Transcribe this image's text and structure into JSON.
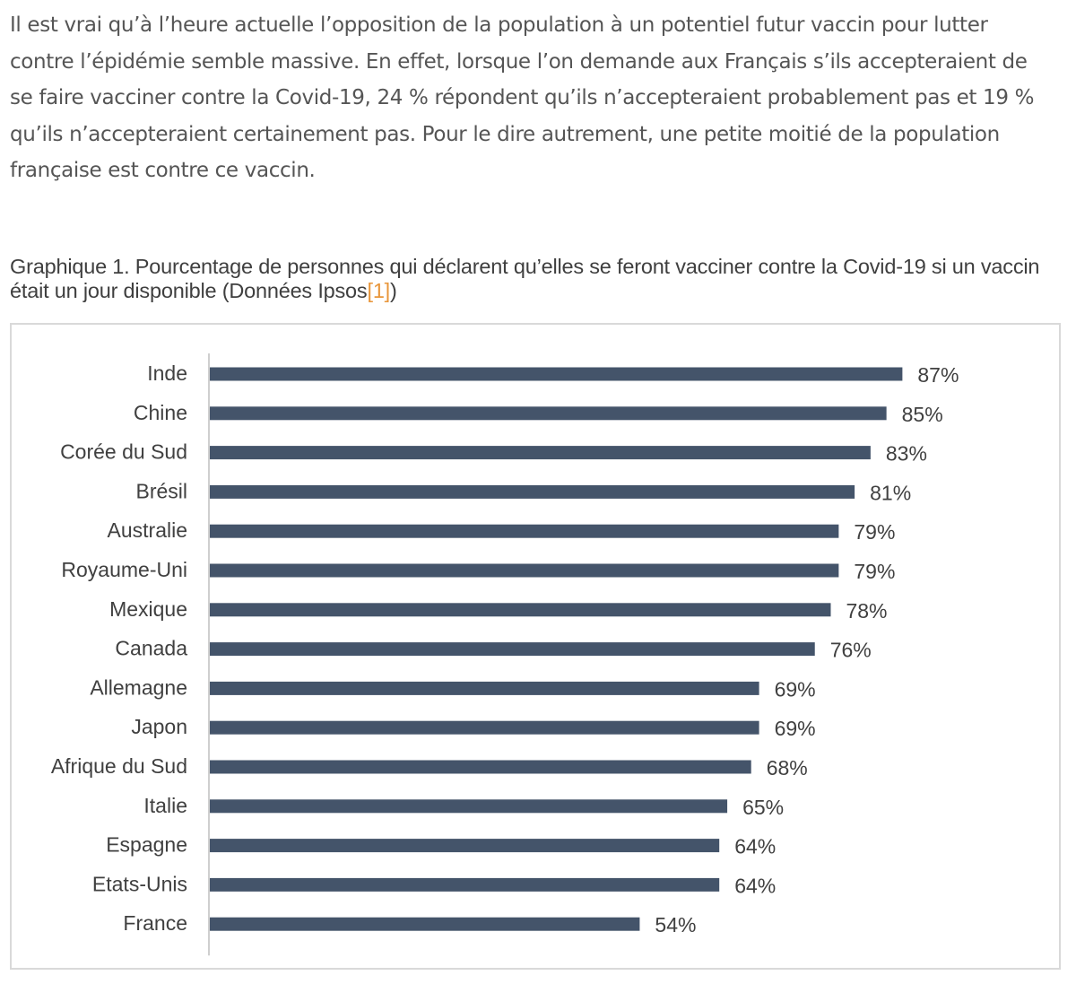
{
  "article": {
    "paragraph": "Il est vrai qu’à l’heure actuelle l’opposition de la population à un potentiel futur vaccin pour lutter contre l’épidémie semble massive. En effet, lorsque l’on demande aux Français s’ils accepteraient de se faire vacciner contre la Covid-19, 24 % répondent qu’ils n’accepteraient probablement pas et 19 % qu’ils n’accepteraient certainement pas. Pour le dire autrement, une petite moitié de la population française est contre ce vaccin."
  },
  "caption": {
    "text": "Graphique 1. Pourcentage de personnes qui déclarent qu’elles se feront vacciner contre la Covid-19 si un vaccin était un jour disponible (Données Ipsos",
    "reference": "[1]",
    "close": ")"
  },
  "colors": {
    "bar": "#44546a",
    "axis": "#bfbfbf",
    "label": "#404040",
    "reference": "#e8963a"
  },
  "chart_data": {
    "type": "bar",
    "orientation": "horizontal",
    "title": "Graphique 1. Pourcentage de personnes qui déclarent qu’elles se feront vacciner contre la Covid-19 si un vaccin était un jour disponible (Données Ipsos[1])",
    "xlabel": "",
    "ylabel": "",
    "xlim": [
      0,
      100
    ],
    "grid": false,
    "value_suffix": "%",
    "categories": [
      "Inde",
      "Chine",
      "Corée du Sud",
      "Brésil",
      "Australie",
      "Royaume-Uni",
      "Mexique",
      "Canada",
      "Allemagne",
      "Japon",
      "Afrique du Sud",
      "Italie",
      "Espagne",
      "Etats-Unis",
      "France"
    ],
    "values": [
      87,
      85,
      83,
      81,
      79,
      79,
      78,
      76,
      69,
      69,
      68,
      65,
      64,
      64,
      54
    ],
    "data_labels": [
      "87%",
      "85%",
      "83%",
      "81%",
      "79%",
      "79%",
      "78%",
      "76%",
      "69%",
      "69%",
      "68%",
      "65%",
      "64%",
      "64%",
      "54%"
    ]
  }
}
